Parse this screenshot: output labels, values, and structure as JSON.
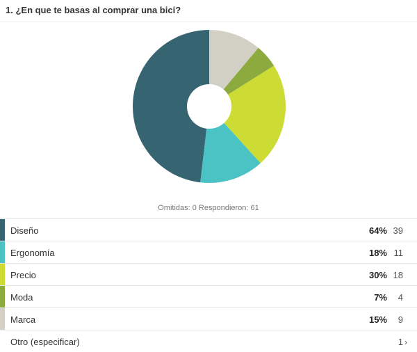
{
  "question": {
    "title": "1. ¿En que te basas al comprar una bici?"
  },
  "stats": {
    "text": "Omitidas: 0   Respondieron: 61"
  },
  "chart_data": {
    "type": "pie",
    "donut": true,
    "categories": [
      "Diseño",
      "Ergonomía",
      "Precio",
      "Moda",
      "Marca"
    ],
    "values": [
      39,
      11,
      18,
      4,
      9
    ],
    "colors": [
      "#376471",
      "#4bc2c3",
      "#cddb35",
      "#8caa3e",
      "#d2d0c4"
    ]
  },
  "answers": [
    {
      "label": "Diseño",
      "percent": "64%",
      "count": "39",
      "color": "#376471"
    },
    {
      "label": "Ergonomía",
      "percent": "18%",
      "count": "11",
      "color": "#4bc2c3"
    },
    {
      "label": "Precio",
      "percent": "30%",
      "count": "18",
      "color": "#cddb35"
    },
    {
      "label": "Moda",
      "percent": "7%",
      "count": "4",
      "color": "#8caa3e"
    },
    {
      "label": "Marca",
      "percent": "15%",
      "count": "9",
      "color": "#d2d0c4"
    }
  ],
  "other": {
    "label": "Otro (especificar)",
    "count": "1",
    "chevron": "›",
    "icon": "chevron-right-icon"
  }
}
